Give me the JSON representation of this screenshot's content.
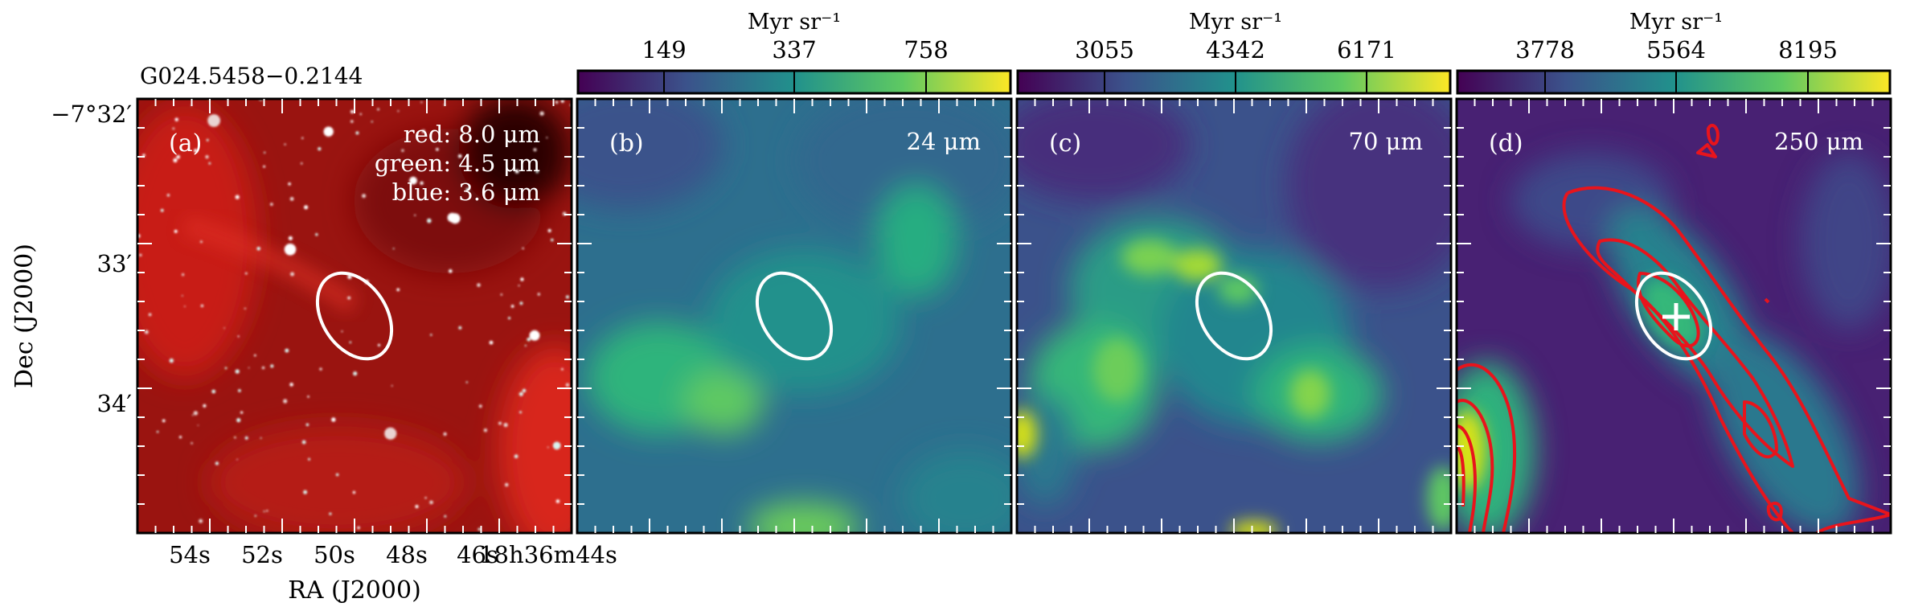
{
  "figure": {
    "source_title": "G024.5458−0.2144",
    "xaxis_label": "RA (J2000)",
    "yaxis_label": "Dec (J2000)",
    "ra_ticks": [
      "54s",
      "52s",
      "50s",
      "48s",
      "46s",
      "18h36m44s"
    ],
    "dec_ticks": [
      "−7°32′",
      "33′",
      "34′"
    ]
  },
  "panels": [
    {
      "id": "a",
      "letter": "(a)",
      "legend": [
        "red: 8.0 μm",
        "green: 4.5 μm",
        "blue: 3.6 μm"
      ]
    },
    {
      "id": "b",
      "letter": "(b)",
      "band": "24 μm",
      "colorbar": {
        "unit": "Myr sr⁻¹",
        "ticks": [
          "149",
          "337",
          "758"
        ]
      }
    },
    {
      "id": "c",
      "letter": "(c)",
      "band": "70 μm",
      "colorbar": {
        "unit": "Myr sr⁻¹",
        "ticks": [
          "3055",
          "4342",
          "6171"
        ]
      }
    },
    {
      "id": "d",
      "letter": "(d)",
      "band": "250 μm",
      "colorbar": {
        "unit": "Myr sr⁻¹",
        "ticks": [
          "3778",
          "5564",
          "8195"
        ]
      }
    }
  ],
  "colors": {
    "viridis": [
      "#440154",
      "#3b528b",
      "#21918c",
      "#5ec962",
      "#fde725"
    ],
    "ellipse": "#ffffff",
    "contours": "#e8141c"
  }
}
